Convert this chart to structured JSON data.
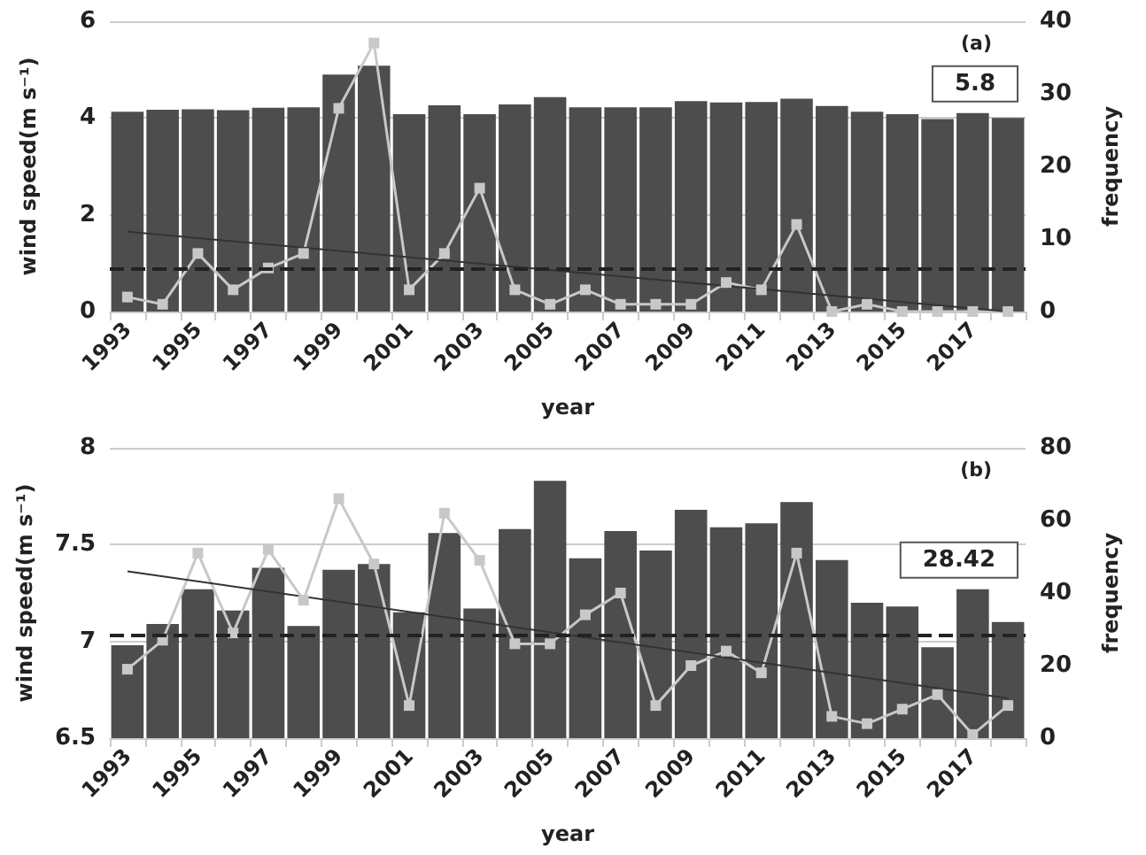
{
  "chart_data": [
    {
      "type": "bar",
      "title": "(a)",
      "xlabel": "year",
      "ylabel": "wind speed(m s⁻¹)",
      "y2label": "frequency",
      "categories": [
        "1993",
        null,
        "1995",
        null,
        "1997",
        null,
        "1999",
        null,
        "2001",
        null,
        "2003",
        null,
        "2005",
        null,
        "2007",
        null,
        "2009",
        null,
        "2011",
        null,
        "2013",
        null,
        "2015",
        null,
        "2017",
        null
      ],
      "series": [
        {
          "color": "#4d4d4d",
          "values": [
            4.13,
            4.17,
            4.18,
            4.16,
            4.21,
            4.22,
            4.9,
            5.08,
            4.08,
            4.26,
            4.08,
            4.28,
            4.43,
            4.22,
            4.22,
            4.22,
            4.35,
            4.32,
            4.33,
            4.4,
            4.25,
            4.13,
            4.08,
            3.98,
            4.1,
            4.0
          ]
        },
        {
          "type": "line",
          "axis": "y2",
          "color": "#c8c8c8",
          "marker": "square",
          "values": [
            2,
            1,
            8,
            3,
            6,
            8,
            28,
            37,
            3,
            8,
            17,
            3,
            1,
            3,
            1,
            1,
            1,
            4,
            3,
            12,
            0,
            1,
            0,
            0,
            0,
            0
          ]
        },
        {
          "type": "line",
          "axis": "y2",
          "color": "#333333",
          "marker": "none",
          "values": [
            11,
            null,
            null,
            null,
            null,
            null,
            null,
            null,
            null,
            null,
            null,
            null,
            null,
            null,
            null,
            null,
            null,
            null,
            null,
            null,
            null,
            null,
            null,
            null,
            null,
            0
          ]
        }
      ],
      "ylim": [
        0,
        6
      ],
      "yticks": [
        0,
        2,
        4,
        6
      ],
      "y2lim": [
        0,
        40
      ],
      "y2ticks": [
        0,
        10,
        20,
        30,
        40
      ],
      "ref_lines": [
        {
          "axis": "y2",
          "value": 5.8,
          "label": "5.8",
          "color": "#222222",
          "line_style": "dashed"
        }
      ],
      "grid": "y"
    },
    {
      "type": "bar",
      "title": "(b)",
      "xlabel": "year",
      "ylabel": "wind speed(m s⁻¹)",
      "y2label": "frequency",
      "categories": [
        "1993",
        null,
        "1995",
        null,
        "1997",
        null,
        "1999",
        null,
        "2001",
        null,
        "2003",
        null,
        "2005",
        null,
        "2007",
        null,
        "2009",
        null,
        "2011",
        null,
        "2013",
        null,
        "2015",
        null,
        "2017",
        null
      ],
      "series": [
        {
          "color": "#4d4d4d",
          "values": [
            6.98,
            7.09,
            7.27,
            7.16,
            7.38,
            7.08,
            7.37,
            7.4,
            7.15,
            7.56,
            7.17,
            7.58,
            7.83,
            7.43,
            7.57,
            7.47,
            7.68,
            7.59,
            7.61,
            7.72,
            7.42,
            7.2,
            7.18,
            6.97,
            7.27,
            7.1
          ]
        },
        {
          "type": "line",
          "axis": "y2",
          "color": "#c8c8c8",
          "marker": "square",
          "values": [
            19,
            27,
            51,
            29,
            52,
            38,
            66,
            48,
            9,
            62,
            49,
            26,
            26,
            34,
            40,
            9,
            20,
            24,
            18,
            51,
            6,
            4,
            8,
            12,
            1,
            9
          ]
        },
        {
          "type": "line",
          "axis": "y2",
          "color": "#333333",
          "marker": "none",
          "values": [
            46,
            null,
            null,
            null,
            null,
            null,
            null,
            null,
            null,
            null,
            null,
            null,
            null,
            null,
            null,
            null,
            null,
            null,
            null,
            null,
            null,
            null,
            null,
            null,
            null,
            11
          ]
        }
      ],
      "ylim": [
        6.5,
        8
      ],
      "yticks": [
        6.5,
        7,
        7.5,
        8
      ],
      "y2lim": [
        0,
        80
      ],
      "y2ticks": [
        0,
        20,
        40,
        60,
        80
      ],
      "ref_lines": [
        {
          "axis": "y2",
          "value": 28.42,
          "label": "28.42",
          "color": "#222222",
          "line_style": "dashed"
        }
      ],
      "grid": "y"
    }
  ]
}
